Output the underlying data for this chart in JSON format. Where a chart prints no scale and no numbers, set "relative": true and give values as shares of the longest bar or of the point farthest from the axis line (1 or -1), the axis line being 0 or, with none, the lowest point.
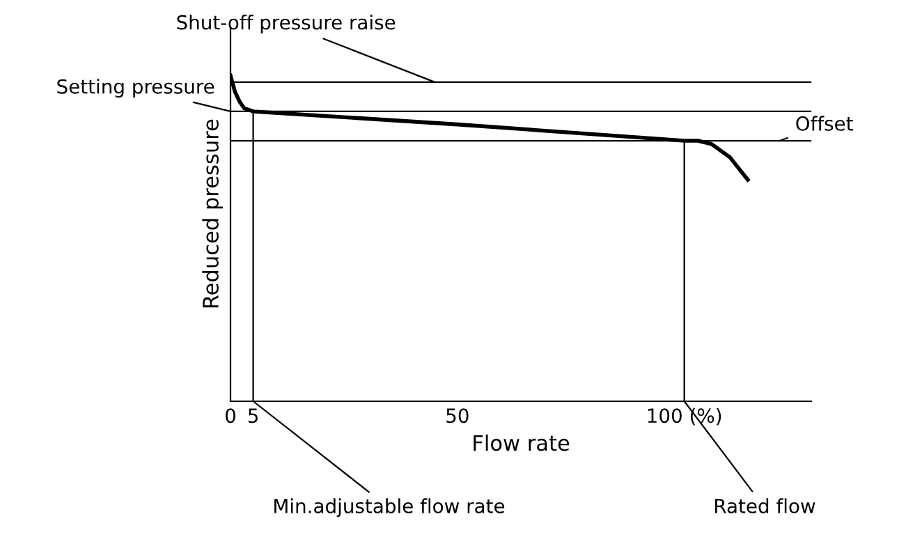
{
  "chart_data": {
    "type": "line",
    "relative": true,
    "xlabel": "Flow rate",
    "ylabel": "Reduced pressure",
    "x": [
      0,
      1,
      2,
      3,
      5,
      50,
      100,
      103,
      106,
      110,
      114
    ],
    "series": [
      {
        "color": "#000000",
        "values": [
          1.0,
          0.95,
          0.92,
          0.9,
          0.89,
          0.85,
          0.8,
          0.8,
          0.79,
          0.75,
          0.68
        ]
      }
    ],
    "xlim": [
      0,
      128
    ],
    "xticks": [
      0,
      5,
      50,
      {
        "value": 100,
        "label": "100 (%)"
      }
    ],
    "ref_lines": [
      {
        "axis": "y",
        "value": 0.89,
        "color": "#000000"
      },
      {
        "axis": "y",
        "value": 0.98,
        "color": "#000000"
      },
      {
        "axis": "y",
        "value": 0.8,
        "color": "#000000"
      },
      {
        "axis": "x",
        "value": 5,
        "color": "#000000"
      },
      {
        "axis": "x",
        "value": 100,
        "color": "#000000"
      }
    ],
    "annotations": [
      {
        "text": "Setting pressure",
        "x": 0,
        "y": 0.89
      },
      {
        "text": "Shut-off pressure raise",
        "x": 45,
        "y": 0.98
      },
      {
        "text": "Offset",
        "x": 121,
        "y": 0.8
      },
      {
        "text": "Min.adjustable flow rate",
        "x": 5,
        "y": 0
      },
      {
        "text": "Rated flow",
        "x": 100,
        "y": 0
      }
    ],
    "grid": false
  }
}
